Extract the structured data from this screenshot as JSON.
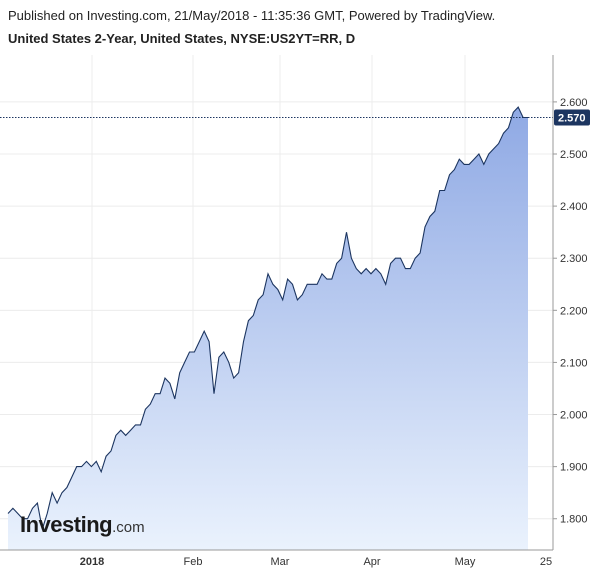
{
  "header": {
    "published": "Published on Investing.com, 21/May/2018 - 11:35:36 GMT, Powered by TradingView.",
    "title": "United States 2-Year, United States, NYSE:US2YT=RR, D"
  },
  "logo": {
    "main": "Investing",
    "suffix": ".com"
  },
  "colors": {
    "line": "#1c3560",
    "fill_top": "#8fa9e4",
    "fill_bottom": "#eaf2fd",
    "badge": "#1c3560",
    "dotted": "#1c3560"
  },
  "chart_data": {
    "type": "area",
    "title": "United States 2-Year, United States, NYSE:US2YT=RR, D",
    "ylim": [
      1.74,
      2.69
    ],
    "y_ticks": [
      "1.800",
      "1.900",
      "2.000",
      "2.100",
      "2.200",
      "2.300",
      "2.400",
      "2.500",
      "2.600"
    ],
    "x_labels": [
      "2018",
      "Feb",
      "Mar",
      "Apr",
      "May",
      "25"
    ],
    "last_value": 2.57,
    "last_value_label": "2.570",
    "grid": true,
    "series": [
      {
        "values": [
          1.81,
          1.82,
          1.81,
          1.8,
          1.8,
          1.82,
          1.83,
          1.78,
          1.81,
          1.85,
          1.83,
          1.85,
          1.86,
          1.88,
          1.9,
          1.9,
          1.91,
          1.9,
          1.91,
          1.89,
          1.92,
          1.93,
          1.96,
          1.97,
          1.96,
          1.97,
          1.98,
          1.98,
          2.01,
          2.02,
          2.04,
          2.04,
          2.07,
          2.06,
          2.03,
          2.08,
          2.1,
          2.12,
          2.12,
          2.14,
          2.16,
          2.14,
          2.04,
          2.11,
          2.12,
          2.1,
          2.07,
          2.08,
          2.14,
          2.18,
          2.19,
          2.22,
          2.23,
          2.27,
          2.25,
          2.24,
          2.22,
          2.26,
          2.25,
          2.22,
          2.23,
          2.25,
          2.25,
          2.25,
          2.27,
          2.26,
          2.26,
          2.29,
          2.3,
          2.35,
          2.3,
          2.28,
          2.27,
          2.28,
          2.27,
          2.28,
          2.27,
          2.25,
          2.29,
          2.3,
          2.3,
          2.28,
          2.28,
          2.3,
          2.31,
          2.36,
          2.38,
          2.39,
          2.43,
          2.43,
          2.46,
          2.47,
          2.49,
          2.48,
          2.48,
          2.49,
          2.5,
          2.48,
          2.5,
          2.51,
          2.52,
          2.54,
          2.55,
          2.58,
          2.59,
          2.57,
          2.57
        ]
      }
    ]
  }
}
